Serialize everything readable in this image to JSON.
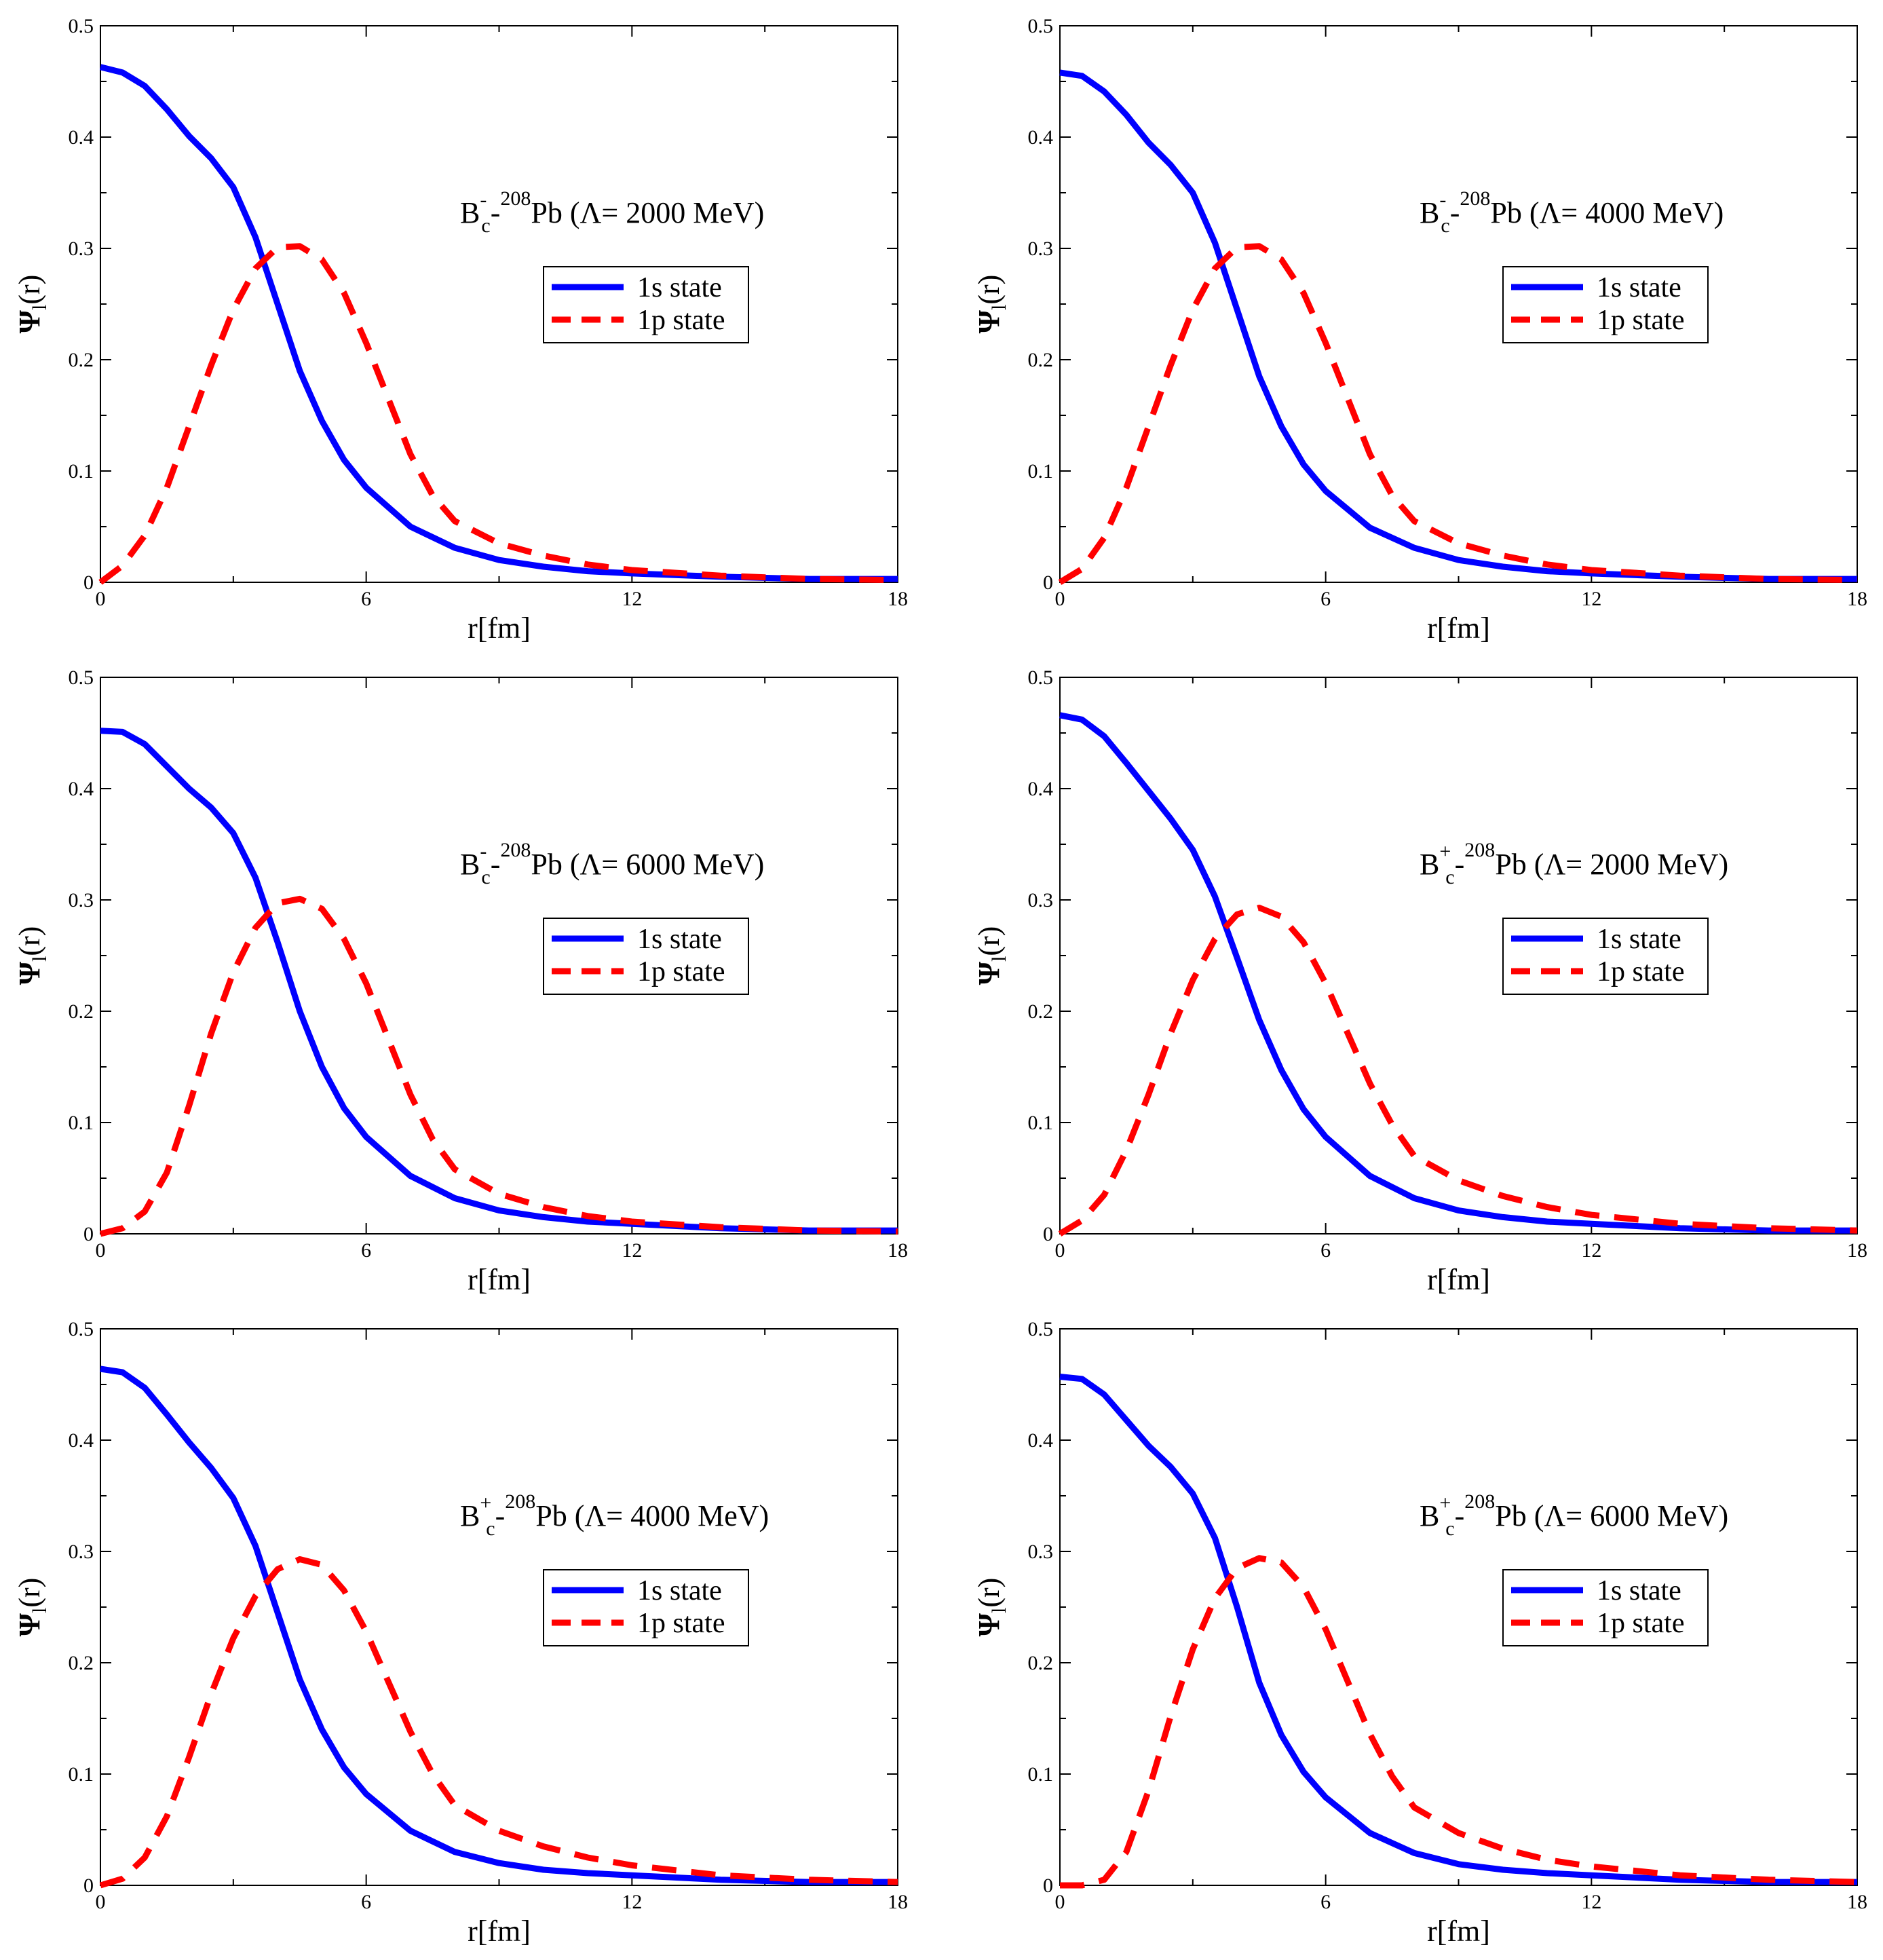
{
  "chart_data": [
    {
      "type": "line",
      "title": "B⁻_c-²⁰⁸Pb (Λ= 2000 MeV)",
      "annotation": {
        "meson": "B",
        "charge": "-",
        "sub": "c",
        "mass_number": "208",
        "nucleus": "Pb",
        "label": "(Λ= 2000 MeV)"
      },
      "xlabel": "r[fm]",
      "ylabel": "Ψ_l(r)",
      "ylabel_main": "Ψ",
      "ylabel_sub": "l",
      "ylabel_tail": "(r)",
      "xlim": [
        0,
        18
      ],
      "ylim": [
        0,
        0.5
      ],
      "xticks": [
        "0",
        "6",
        "12",
        "18"
      ],
      "yticks": [
        "0",
        "0.1",
        "0.2",
        "0.3",
        "0.4",
        "0.5"
      ],
      "legend": [
        "1s state",
        "1p state"
      ],
      "series": [
        {
          "name": "1s state",
          "color": "#0000ff",
          "style": "solid",
          "x": [
            0,
            0.5,
            1,
            1.5,
            2,
            2.5,
            3,
            3.5,
            4,
            4.5,
            5,
            5.5,
            6,
            7,
            8,
            9,
            10,
            11,
            12,
            14,
            16,
            18
          ],
          "y": [
            0.463,
            0.458,
            0.446,
            0.425,
            0.401,
            0.381,
            0.355,
            0.31,
            0.25,
            0.19,
            0.145,
            0.11,
            0.085,
            0.05,
            0.031,
            0.02,
            0.014,
            0.01,
            0.008,
            0.005,
            0.003,
            0.003
          ]
        },
        {
          "name": "1p state",
          "color": "#ff0000",
          "style": "dashed",
          "x": [
            0,
            0.5,
            1,
            1.5,
            2,
            2.5,
            3,
            3.5,
            4,
            4.5,
            5,
            5.5,
            6,
            6.5,
            7,
            7.5,
            8,
            9,
            10,
            11,
            12,
            14,
            16,
            18
          ],
          "y": [
            0.0,
            0.015,
            0.042,
            0.085,
            0.14,
            0.195,
            0.245,
            0.282,
            0.301,
            0.302,
            0.29,
            0.26,
            0.215,
            0.165,
            0.115,
            0.078,
            0.055,
            0.035,
            0.024,
            0.016,
            0.011,
            0.006,
            0.003,
            0.002
          ]
        }
      ]
    },
    {
      "type": "line",
      "title": "B⁻_c-²⁰⁸Pb (Λ= 4000 MeV)",
      "annotation": {
        "meson": "B",
        "charge": "-",
        "sub": "c",
        "mass_number": "208",
        "nucleus": "Pb",
        "label": "(Λ= 4000 MeV)"
      },
      "xlabel": "r[fm]",
      "ylabel": "Ψ_l(r)",
      "ylabel_main": "Ψ",
      "ylabel_sub": "l",
      "ylabel_tail": "(r)",
      "xlim": [
        0,
        18
      ],
      "ylim": [
        0,
        0.5
      ],
      "xticks": [
        "0",
        "6",
        "12",
        "18"
      ],
      "yticks": [
        "0",
        "0.1",
        "0.2",
        "0.3",
        "0.4",
        "0.5"
      ],
      "legend": [
        "1s state",
        "1p state"
      ],
      "series": [
        {
          "name": "1s state",
          "color": "#0000ff",
          "style": "solid",
          "x": [
            0,
            0.5,
            1,
            1.5,
            2,
            2.5,
            3,
            3.5,
            4,
            4.5,
            5,
            5.5,
            6,
            7,
            8,
            9,
            10,
            11,
            12,
            14,
            16,
            18
          ],
          "y": [
            0.458,
            0.455,
            0.441,
            0.42,
            0.395,
            0.375,
            0.35,
            0.305,
            0.245,
            0.185,
            0.14,
            0.106,
            0.082,
            0.049,
            0.031,
            0.02,
            0.014,
            0.01,
            0.008,
            0.005,
            0.003,
            0.003
          ]
        },
        {
          "name": "1p state",
          "color": "#ff0000",
          "style": "dashed",
          "x": [
            0,
            0.5,
            1,
            1.5,
            2,
            2.5,
            3,
            3.5,
            4,
            4.5,
            5,
            5.5,
            6,
            6.5,
            7,
            7.5,
            8,
            9,
            10,
            11,
            12,
            14,
            16,
            18
          ],
          "y": [
            0.0,
            0.012,
            0.04,
            0.085,
            0.14,
            0.195,
            0.245,
            0.282,
            0.301,
            0.302,
            0.29,
            0.26,
            0.215,
            0.165,
            0.115,
            0.078,
            0.055,
            0.035,
            0.024,
            0.016,
            0.011,
            0.006,
            0.003,
            0.002
          ]
        }
      ]
    },
    {
      "type": "line",
      "title": "B⁻_c-²⁰⁸Pb (Λ= 6000 MeV)",
      "annotation": {
        "meson": "B",
        "charge": "-",
        "sub": "c",
        "mass_number": "208",
        "nucleus": "Pb",
        "label": "(Λ= 6000 MeV)"
      },
      "xlabel": "r[fm]",
      "ylabel": "Ψ_l(r)",
      "ylabel_main": "Ψ",
      "ylabel_sub": "l",
      "ylabel_tail": "(r)",
      "xlim": [
        0,
        18
      ],
      "ylim": [
        0,
        0.5
      ],
      "xticks": [
        "0",
        "6",
        "12",
        "18"
      ],
      "yticks": [
        "0",
        "0.1",
        "0.2",
        "0.3",
        "0.4",
        "0.5"
      ],
      "legend": [
        "1s state",
        "1p state"
      ],
      "series": [
        {
          "name": "1s state",
          "color": "#0000ff",
          "style": "solid",
          "x": [
            0,
            0.5,
            1,
            1.5,
            2,
            2.5,
            3,
            3.5,
            4,
            4.5,
            5,
            5.5,
            6,
            7,
            8,
            9,
            10,
            11,
            12,
            14,
            16,
            18
          ],
          "y": [
            0.452,
            0.451,
            0.44,
            0.42,
            0.4,
            0.383,
            0.36,
            0.32,
            0.262,
            0.2,
            0.15,
            0.113,
            0.087,
            0.052,
            0.032,
            0.021,
            0.015,
            0.011,
            0.009,
            0.005,
            0.003,
            0.003
          ]
        },
        {
          "name": "1p state",
          "color": "#ff0000",
          "style": "dashed",
          "x": [
            0,
            0.5,
            1,
            1.5,
            2,
            2.5,
            3,
            3.5,
            4,
            4.5,
            5,
            5.5,
            6,
            6.5,
            7,
            7.5,
            8,
            9,
            10,
            11,
            12,
            14,
            16,
            18
          ],
          "y": [
            0.0,
            0.005,
            0.02,
            0.055,
            0.115,
            0.18,
            0.235,
            0.275,
            0.297,
            0.301,
            0.292,
            0.265,
            0.225,
            0.175,
            0.125,
            0.085,
            0.058,
            0.036,
            0.024,
            0.016,
            0.011,
            0.006,
            0.003,
            0.002
          ]
        }
      ]
    },
    {
      "type": "line",
      "title": "B⁺_c-²⁰⁸Pb (Λ= 2000 MeV)",
      "annotation": {
        "meson": "B",
        "charge": "+",
        "sub": "c",
        "mass_number": "208",
        "nucleus": "Pb",
        "label": "(Λ= 2000 MeV)"
      },
      "xlabel": "r[fm]",
      "ylabel": "Ψ_l(r)",
      "ylabel_main": "Ψ",
      "ylabel_sub": "l",
      "ylabel_tail": "(r)",
      "xlim": [
        0,
        18
      ],
      "ylim": [
        0,
        0.5
      ],
      "xticks": [
        "0",
        "6",
        "12",
        "18"
      ],
      "yticks": [
        "0",
        "0.1",
        "0.2",
        "0.3",
        "0.4",
        "0.5"
      ],
      "legend": [
        "1s state",
        "1p state"
      ],
      "series": [
        {
          "name": "1s state",
          "color": "#0000ff",
          "style": "solid",
          "x": [
            0,
            0.5,
            1,
            1.5,
            2,
            2.5,
            3,
            3.5,
            4,
            4.5,
            5,
            5.5,
            6,
            7,
            8,
            9,
            10,
            11,
            12,
            14,
            16,
            18
          ],
          "y": [
            0.466,
            0.462,
            0.447,
            0.423,
            0.398,
            0.373,
            0.345,
            0.303,
            0.248,
            0.192,
            0.147,
            0.112,
            0.087,
            0.052,
            0.032,
            0.021,
            0.015,
            0.011,
            0.009,
            0.005,
            0.003,
            0.003
          ]
        },
        {
          "name": "1p state",
          "color": "#ff0000",
          "style": "dashed",
          "x": [
            0,
            0.5,
            1,
            1.5,
            2,
            2.5,
            3,
            3.5,
            4,
            4.5,
            5,
            5.5,
            6,
            6.5,
            7,
            7.5,
            8,
            9,
            10,
            11,
            12,
            14,
            16,
            18
          ],
          "y": [
            0.0,
            0.012,
            0.035,
            0.075,
            0.125,
            0.18,
            0.228,
            0.265,
            0.287,
            0.293,
            0.285,
            0.262,
            0.225,
            0.18,
            0.135,
            0.098,
            0.07,
            0.048,
            0.034,
            0.024,
            0.017,
            0.009,
            0.005,
            0.003
          ]
        }
      ]
    },
    {
      "type": "line",
      "title": "B⁺_c-²⁰⁸Pb (Λ= 4000 MeV)",
      "annotation": {
        "meson": "B",
        "charge": "+",
        "sub": "c",
        "mass_number": "208",
        "nucleus": "Pb",
        "label": "(Λ= 4000 MeV)"
      },
      "xlabel": "r[fm]",
      "ylabel": "Ψ_l(r)",
      "ylabel_main": "Ψ",
      "ylabel_sub": "l",
      "ylabel_tail": "(r)",
      "xlim": [
        0,
        18
      ],
      "ylim": [
        0,
        0.5
      ],
      "xticks": [
        "0",
        "6",
        "12",
        "18"
      ],
      "yticks": [
        "0",
        "0.1",
        "0.2",
        "0.3",
        "0.4",
        "0.5"
      ],
      "legend": [
        "1s state",
        "1p state"
      ],
      "series": [
        {
          "name": "1s state",
          "color": "#0000ff",
          "style": "solid",
          "x": [
            0,
            0.5,
            1,
            1.5,
            2,
            2.5,
            3,
            3.5,
            4,
            4.5,
            5,
            5.5,
            6,
            7,
            8,
            9,
            10,
            11,
            12,
            14,
            16,
            18
          ],
          "y": [
            0.464,
            0.461,
            0.447,
            0.423,
            0.398,
            0.375,
            0.348,
            0.305,
            0.245,
            0.185,
            0.14,
            0.106,
            0.082,
            0.049,
            0.03,
            0.02,
            0.014,
            0.011,
            0.009,
            0.005,
            0.003,
            0.003
          ]
        },
        {
          "name": "1p state",
          "color": "#ff0000",
          "style": "dashed",
          "x": [
            0,
            0.5,
            1,
            1.5,
            2,
            2.5,
            3,
            3.5,
            4,
            4.5,
            5,
            5.5,
            6,
            6.5,
            7,
            7.5,
            8,
            9,
            10,
            11,
            12,
            14,
            16,
            18
          ],
          "y": [
            0.0,
            0.006,
            0.025,
            0.062,
            0.115,
            0.172,
            0.222,
            0.26,
            0.284,
            0.293,
            0.288,
            0.265,
            0.228,
            0.183,
            0.138,
            0.1,
            0.072,
            0.049,
            0.035,
            0.025,
            0.018,
            0.009,
            0.005,
            0.003
          ]
        }
      ]
    },
    {
      "type": "line",
      "title": "B⁺_c-²⁰⁸Pb (Λ= 6000 MeV)",
      "annotation": {
        "meson": "B",
        "charge": "+",
        "sub": "c",
        "mass_number": "208",
        "nucleus": "Pb",
        "label": "(Λ= 6000 MeV)"
      },
      "xlabel": "r[fm]",
      "ylabel": "Ψ_l(r)",
      "ylabel_main": "Ψ",
      "ylabel_sub": "l",
      "ylabel_tail": "(r)",
      "xlim": [
        0,
        18
      ],
      "ylim": [
        0,
        0.5
      ],
      "xticks": [
        "0",
        "6",
        "12",
        "18"
      ],
      "yticks": [
        "0",
        "0.1",
        "0.2",
        "0.3",
        "0.4",
        "0.5"
      ],
      "legend": [
        "1s state",
        "1p state"
      ],
      "series": [
        {
          "name": "1s state",
          "color": "#0000ff",
          "style": "solid",
          "x": [
            0,
            0.5,
            1,
            1.5,
            2,
            2.5,
            3,
            3.5,
            4,
            4.5,
            5,
            5.5,
            6,
            7,
            8,
            9,
            10,
            11,
            12,
            14,
            16,
            18
          ],
          "y": [
            0.457,
            0.455,
            0.441,
            0.418,
            0.395,
            0.376,
            0.352,
            0.312,
            0.25,
            0.182,
            0.135,
            0.102,
            0.079,
            0.047,
            0.029,
            0.019,
            0.014,
            0.011,
            0.009,
            0.005,
            0.003,
            0.003
          ]
        },
        {
          "name": "1p state",
          "color": "#ff0000",
          "style": "dashed",
          "x": [
            0,
            0.5,
            1,
            1.5,
            2,
            2.5,
            3,
            3.5,
            4,
            4.5,
            5,
            5.5,
            6,
            6.5,
            7,
            7.5,
            8,
            9,
            10,
            11,
            12,
            14,
            16,
            18
          ],
          "y": [
            0.0,
            0.0,
            0.005,
            0.03,
            0.085,
            0.152,
            0.212,
            0.258,
            0.285,
            0.294,
            0.29,
            0.268,
            0.23,
            0.183,
            0.136,
            0.098,
            0.07,
            0.047,
            0.033,
            0.023,
            0.017,
            0.009,
            0.005,
            0.003
          ]
        }
      ]
    }
  ]
}
